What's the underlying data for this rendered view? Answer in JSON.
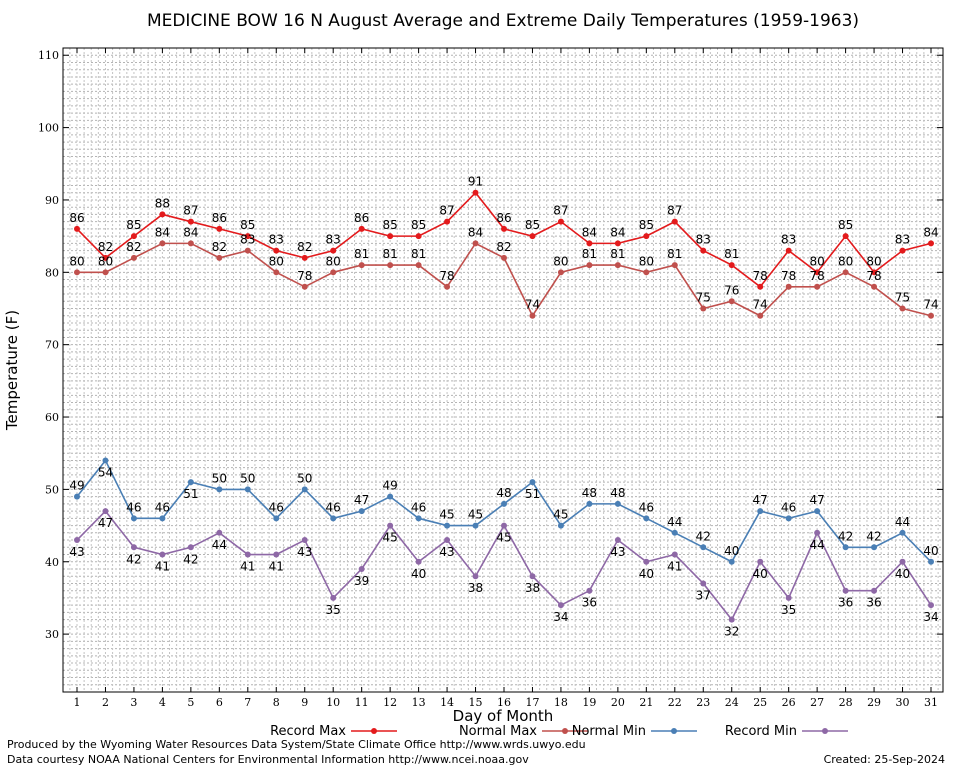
{
  "chart_data": {
    "type": "line",
    "title": "MEDICINE BOW 16 N August Average and Extreme Daily Temperatures (1959-1963)",
    "xlabel": "Day of Month",
    "ylabel": "Temperature (F)",
    "xlim": [
      1,
      31
    ],
    "ylim": [
      22,
      111
    ],
    "y_ticks": [
      30,
      40,
      50,
      60,
      70,
      80,
      90,
      100,
      110
    ],
    "x": [
      1,
      2,
      3,
      4,
      5,
      6,
      7,
      8,
      9,
      10,
      11,
      12,
      13,
      14,
      15,
      16,
      17,
      18,
      19,
      20,
      21,
      22,
      23,
      24,
      25,
      26,
      27,
      28,
      29,
      30,
      31
    ],
    "grid": true,
    "legend_position": "bottom",
    "series": [
      {
        "name": "Record Max",
        "color": "#e31a1c",
        "label_position": "above",
        "values": [
          86,
          82,
          85,
          88,
          87,
          86,
          85,
          83,
          82,
          83,
          86,
          85,
          85,
          87,
          91,
          86,
          85,
          87,
          84,
          84,
          85,
          87,
          83,
          81,
          78,
          83,
          80,
          85,
          80,
          83,
          84
        ]
      },
      {
        "name": "Normal Max",
        "color": "#c0504d",
        "label_position": "above",
        "values": [
          80,
          80,
          82,
          84,
          84,
          82,
          83,
          80,
          78,
          80,
          81,
          81,
          81,
          78,
          84,
          82,
          74,
          80,
          81,
          81,
          80,
          81,
          75,
          76,
          74,
          78,
          78,
          80,
          78,
          75,
          74
        ]
      },
      {
        "name": "Normal Min",
        "color": "#4a7fb5",
        "label_position": "mixed",
        "values": [
          49,
          54,
          46,
          46,
          51,
          50,
          50,
          46,
          50,
          46,
          47,
          49,
          46,
          45,
          45,
          48,
          51,
          45,
          48,
          48,
          46,
          44,
          42,
          40,
          47,
          46,
          47,
          42,
          42,
          44,
          40
        ]
      },
      {
        "name": "Record Min",
        "color": "#8e68a6",
        "label_position": "below",
        "values": [
          43,
          47,
          42,
          41,
          42,
          44,
          41,
          41,
          43,
          35,
          39,
          45,
          40,
          43,
          38,
          45,
          38,
          34,
          36,
          43,
          40,
          41,
          37,
          32,
          40,
          35,
          44,
          36,
          36,
          40,
          34
        ]
      }
    ]
  },
  "footer": {
    "produced_by": "Produced by the Wyoming Water Resources Data System/State Climate Office http://www.wrds.uwyo.edu",
    "courtesy": "Data courtesy NOAA National Centers for Environmental Information http://www.ncei.noaa.gov",
    "created": "Created:  25-Sep-2024"
  }
}
